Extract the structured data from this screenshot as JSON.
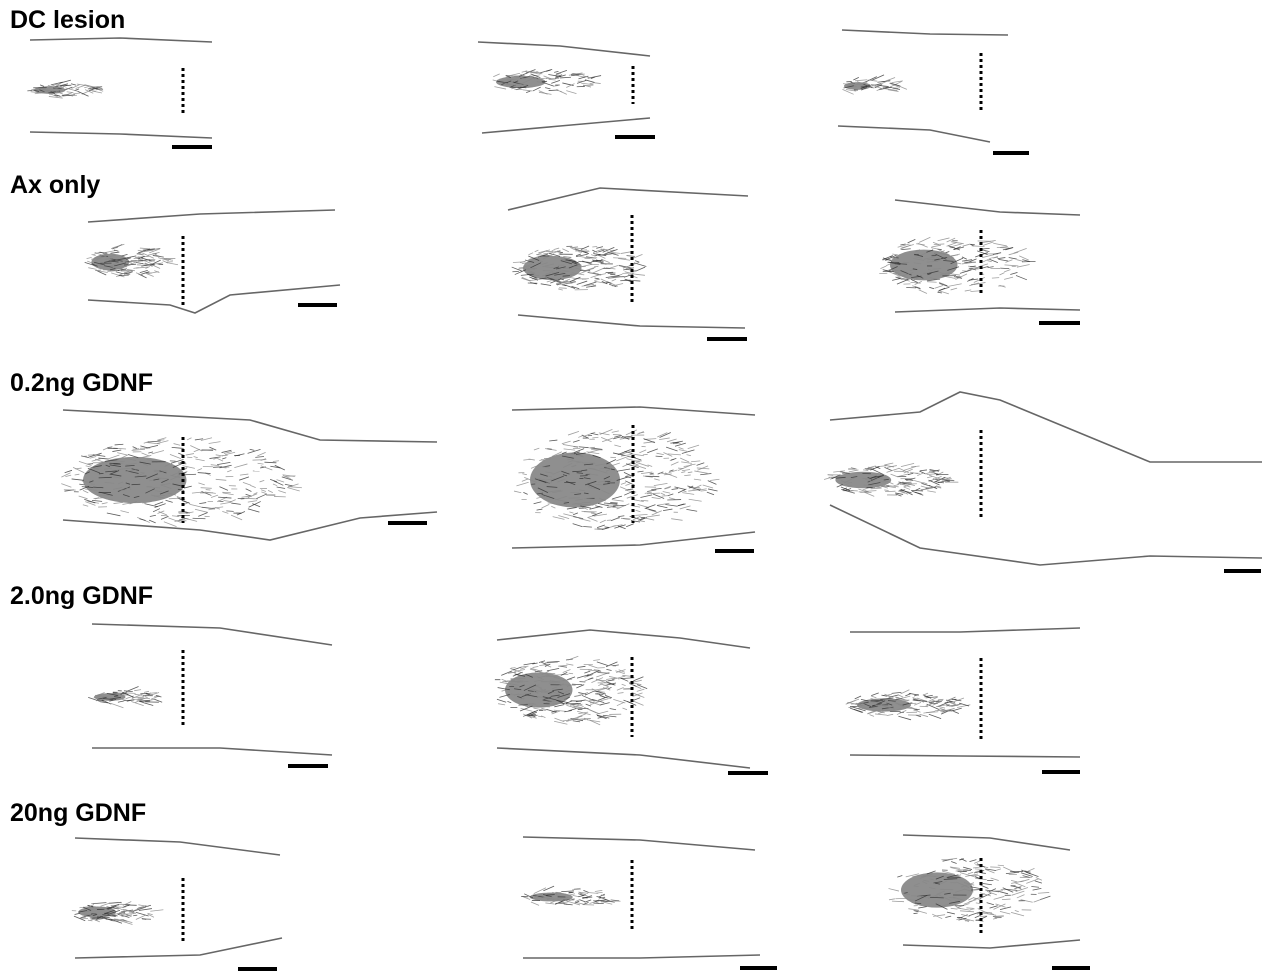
{
  "figure": {
    "rows": [
      {
        "label": "DC lesion"
      },
      {
        "label": "Ax only"
      },
      {
        "label": "0.2ng GDNF"
      },
      {
        "label": "2.0ng GDNF"
      },
      {
        "label": "20ng GDNF"
      }
    ]
  }
}
